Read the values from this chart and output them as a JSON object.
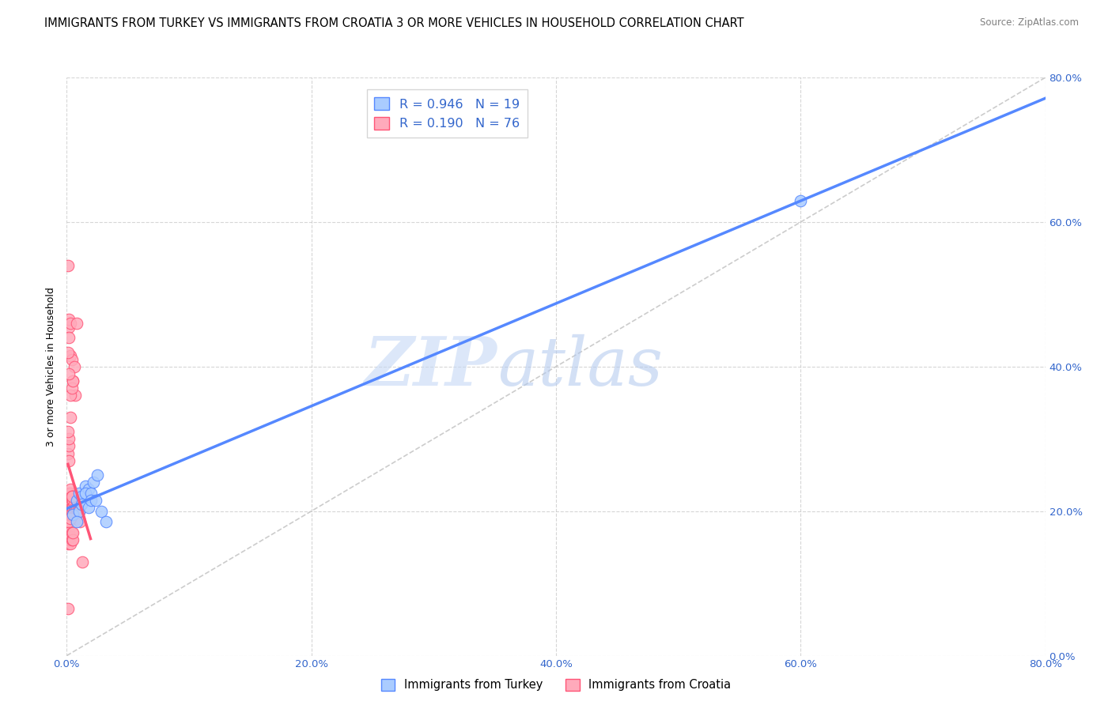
{
  "title": "IMMIGRANTS FROM TURKEY VS IMMIGRANTS FROM CROATIA 3 OR MORE VEHICLES IN HOUSEHOLD CORRELATION CHART",
  "source": "Source: ZipAtlas.com",
  "ylabel": "3 or more Vehicles in Household",
  "xlim": [
    0,
    0.8
  ],
  "ylim": [
    0,
    0.8
  ],
  "xtick_labels": [
    "0.0%",
    "",
    "",
    "",
    "20.0%",
    "",
    "",
    "",
    "40.0%",
    "",
    "",
    "",
    "60.0%",
    "",
    "",
    "",
    "80.0%"
  ],
  "xtick_values": [
    0.0,
    0.05,
    0.1,
    0.15,
    0.2,
    0.25,
    0.3,
    0.35,
    0.4,
    0.45,
    0.5,
    0.55,
    0.6,
    0.65,
    0.7,
    0.75,
    0.8
  ],
  "ytick_labels": [
    "0.0%",
    "20.0%",
    "40.0%",
    "60.0%",
    "80.0%"
  ],
  "ytick_values": [
    0.0,
    0.2,
    0.4,
    0.6,
    0.8
  ],
  "turkey_color": "#5588ff",
  "croatia_color": "#ff5577",
  "turkey_fill": "#aaccff",
  "croatia_fill": "#ffaabb",
  "R_turkey": 0.946,
  "N_turkey": 19,
  "R_croatia": 0.19,
  "N_croatia": 76,
  "watermark_zip": "ZIP",
  "watermark_atlas": "atlas",
  "legend_turkey": "Immigrants from Turkey",
  "legend_croatia": "Immigrants from Croatia",
  "turkey_scatter_x": [
    0.005,
    0.008,
    0.01,
    0.012,
    0.015,
    0.018,
    0.01,
    0.012,
    0.015,
    0.02,
    0.022,
    0.025,
    0.018,
    0.02,
    0.024,
    0.028,
    0.032,
    0.6,
    0.008
  ],
  "turkey_scatter_y": [
    0.195,
    0.215,
    0.225,
    0.22,
    0.235,
    0.23,
    0.2,
    0.21,
    0.225,
    0.225,
    0.24,
    0.25,
    0.205,
    0.215,
    0.215,
    0.2,
    0.185,
    0.63,
    0.185
  ],
  "croatia_scatter_x": [
    0.001,
    0.001,
    0.001,
    0.001,
    0.001,
    0.002,
    0.002,
    0.002,
    0.002,
    0.002,
    0.002,
    0.002,
    0.003,
    0.003,
    0.003,
    0.003,
    0.003,
    0.003,
    0.003,
    0.004,
    0.004,
    0.004,
    0.004,
    0.004,
    0.005,
    0.005,
    0.005,
    0.005,
    0.006,
    0.006,
    0.006,
    0.007,
    0.007,
    0.008,
    0.008,
    0.009,
    0.009,
    0.01,
    0.01,
    0.011,
    0.001,
    0.001,
    0.002,
    0.002,
    0.003,
    0.003,
    0.004,
    0.004,
    0.005,
    0.005,
    0.001,
    0.002,
    0.002,
    0.003,
    0.004,
    0.005,
    0.006,
    0.007,
    0.003,
    0.004,
    0.005,
    0.001,
    0.002,
    0.003,
    0.002,
    0.003,
    0.001,
    0.002,
    0.002,
    0.001,
    0.002,
    0.004,
    0.003,
    0.008,
    0.001,
    0.013
  ],
  "croatia_scatter_y": [
    0.185,
    0.195,
    0.2,
    0.205,
    0.21,
    0.185,
    0.195,
    0.2,
    0.21,
    0.215,
    0.22,
    0.225,
    0.195,
    0.2,
    0.21,
    0.215,
    0.22,
    0.225,
    0.23,
    0.195,
    0.2,
    0.205,
    0.215,
    0.22,
    0.195,
    0.205,
    0.215,
    0.22,
    0.195,
    0.2,
    0.21,
    0.195,
    0.205,
    0.195,
    0.205,
    0.19,
    0.2,
    0.19,
    0.2,
    0.185,
    0.155,
    0.165,
    0.16,
    0.17,
    0.155,
    0.165,
    0.16,
    0.17,
    0.16,
    0.17,
    0.54,
    0.455,
    0.465,
    0.415,
    0.41,
    0.38,
    0.4,
    0.36,
    0.36,
    0.37,
    0.38,
    0.42,
    0.44,
    0.46,
    0.39,
    0.33,
    0.28,
    0.29,
    0.3,
    0.31,
    0.27,
    0.22,
    0.19,
    0.46,
    0.065,
    0.13
  ],
  "grid_color": "#cccccc",
  "background_color": "#ffffff",
  "title_fontsize": 10.5,
  "axis_label_fontsize": 9,
  "tick_fontsize": 9.5,
  "legend_fontsize": 11.5
}
